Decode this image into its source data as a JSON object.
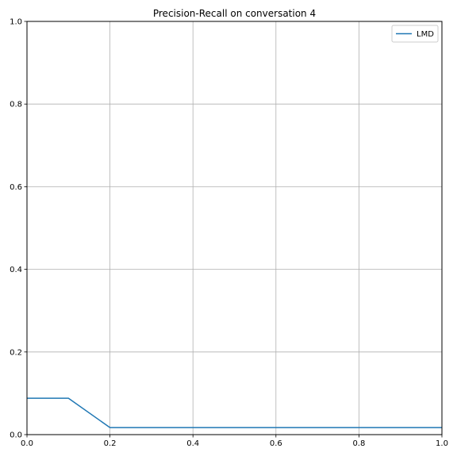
{
  "chart_data": {
    "type": "line",
    "title": "Precision-Recall on conversation 4",
    "xlabel": "",
    "ylabel": "",
    "xlim": [
      0.0,
      1.0
    ],
    "ylim": [
      0.0,
      1.0
    ],
    "x_ticks": [
      "0.0",
      "0.2",
      "0.4",
      "0.6",
      "0.8",
      "1.0"
    ],
    "y_ticks": [
      "0.0",
      "0.2",
      "0.4",
      "0.6",
      "0.8",
      "1.0"
    ],
    "grid": true,
    "legend_position": "top-right",
    "series": [
      {
        "name": "LMD",
        "color": "#1f77b4",
        "x": [
          0.0,
          0.1,
          0.2,
          1.0
        ],
        "y": [
          0.088,
          0.088,
          0.017,
          0.017
        ]
      }
    ]
  }
}
